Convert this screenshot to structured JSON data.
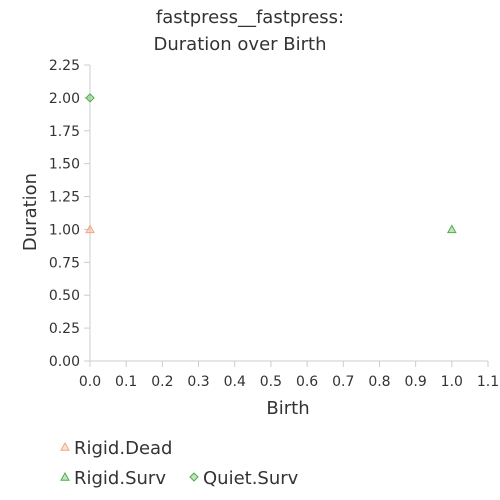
{
  "chart_data": {
    "type": "scatter",
    "title_lines": [
      "fastpress__fastpress:",
      "Duration over Birth"
    ],
    "xlabel": "Birth",
    "ylabel": "Duration",
    "xlim": [
      0,
      1.1
    ],
    "ylim": [
      0,
      2.25
    ],
    "x_ticks": [
      "0.0",
      "0.1",
      "0.2",
      "0.3",
      "0.4",
      "0.5",
      "0.6",
      "0.7",
      "0.8",
      "0.9",
      "1.0",
      "1.1"
    ],
    "y_ticks": [
      "0.00",
      "0.25",
      "0.50",
      "0.75",
      "1.00",
      "1.25",
      "1.50",
      "1.75",
      "2.00",
      "2.25"
    ],
    "grid": false,
    "legend_position": "bottom-left",
    "series": [
      {
        "name": "Rigid.Dead",
        "marker": "triangle",
        "color": "#f4a582",
        "points": [
          [
            0.0,
            1.0
          ]
        ]
      },
      {
        "name": "Rigid.Surv",
        "marker": "triangle",
        "color": "#4daf4a",
        "points": [
          [
            1.0,
            1.0
          ]
        ]
      },
      {
        "name": "Quiet.Surv",
        "marker": "diamond",
        "color": "#4daf4a",
        "points": [
          [
            0.0,
            2.0
          ]
        ]
      }
    ]
  }
}
